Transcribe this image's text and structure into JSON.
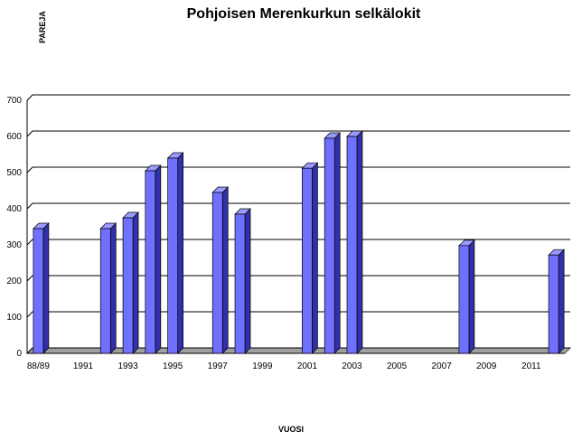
{
  "chart_data": {
    "type": "bar3d",
    "title": "Pohjoisen Merenkurkun selkälokit",
    "y_label": "PAREJA",
    "x_label": "VUOSI",
    "categories": [
      "88/89",
      null,
      "1991",
      null,
      "1993",
      null,
      "1995",
      null,
      "1997",
      null,
      "1999",
      null,
      "2001",
      null,
      "2003",
      null,
      "2005",
      null,
      "2007",
      null,
      "2009",
      null,
      "2011",
      null
    ],
    "values": [
      345,
      null,
      null,
      345,
      375,
      505,
      540,
      null,
      445,
      385,
      null,
      null,
      512,
      595,
      600,
      null,
      null,
      null,
      null,
      298,
      null,
      null,
      null,
      272
    ],
    "color": "#7070ff",
    "ylim": [
      0,
      700
    ],
    "yticks": [
      0,
      100,
      200,
      300,
      400,
      500,
      600,
      700
    ],
    "grid": true
  }
}
